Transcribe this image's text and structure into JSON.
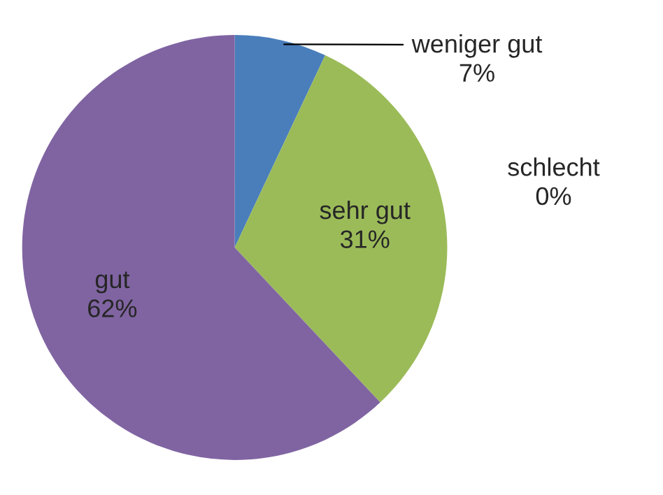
{
  "chart_data": {
    "type": "pie",
    "categories": [
      "weniger gut",
      "sehr gut",
      "gut",
      "schlecht"
    ],
    "values": [
      7,
      31,
      62,
      0
    ],
    "value_labels": [
      "7%",
      "31%",
      "62%",
      "0%"
    ],
    "colors": [
      "#4a7ebb",
      "#9bbb59",
      "#8064a2",
      "#c0504d"
    ],
    "legend": false
  }
}
